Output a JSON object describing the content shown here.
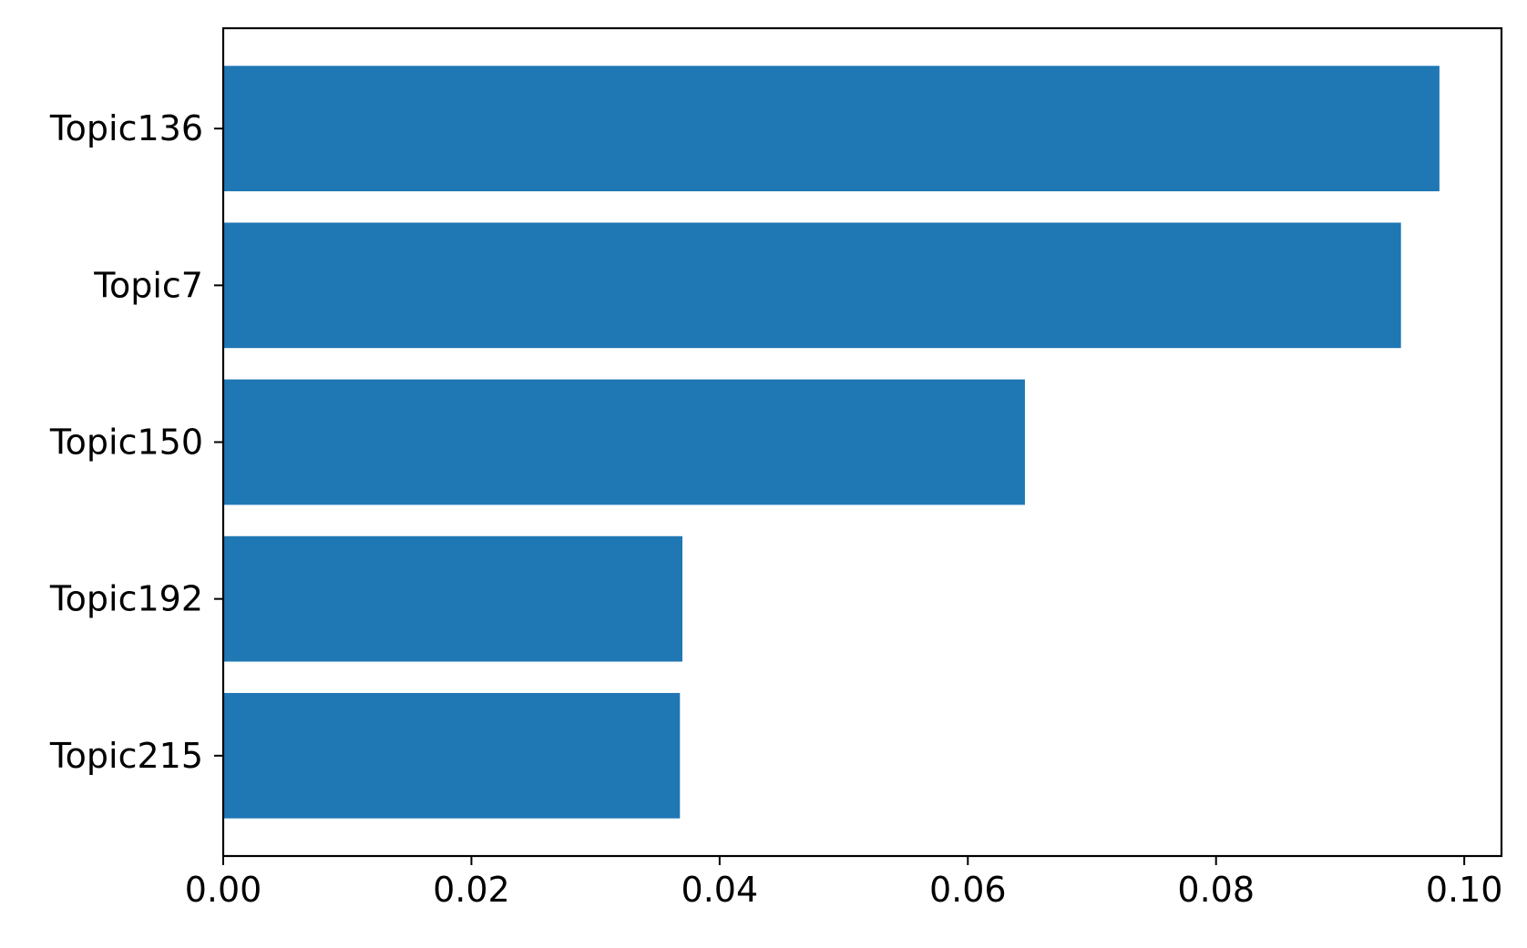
{
  "chart_data": {
    "type": "bar",
    "orientation": "horizontal",
    "title": "",
    "xlabel": "",
    "ylabel": "",
    "categories": [
      "Topic136",
      "Topic7",
      "Topic150",
      "Topic192",
      "Topic215"
    ],
    "values": [
      0.098,
      0.0949,
      0.0646,
      0.037,
      0.0368
    ],
    "xlim": [
      0.0,
      0.103
    ],
    "xticks": [
      0.0,
      0.02,
      0.04,
      0.06,
      0.08,
      0.1
    ],
    "xtick_labels": [
      "0.00",
      "0.02",
      "0.04",
      "0.06",
      "0.08",
      "0.10"
    ],
    "bar_color": "#1f77b4",
    "grid": false,
    "legend": "none"
  }
}
